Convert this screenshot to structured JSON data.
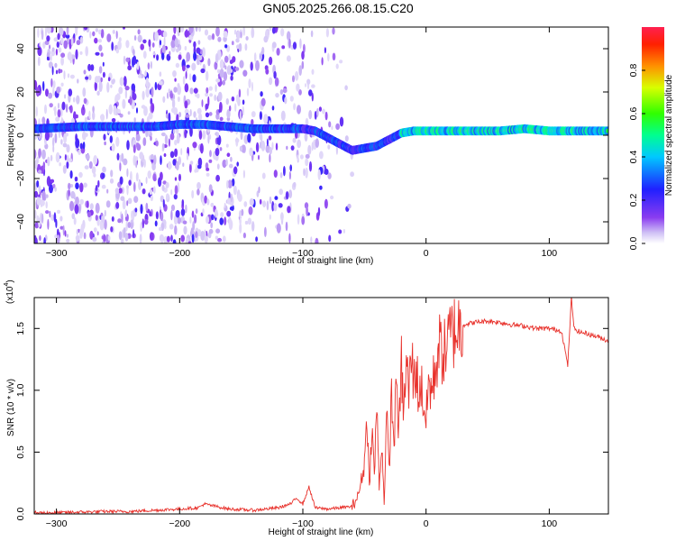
{
  "title": "GN05.2025.266.08.15.C20",
  "colors": {
    "snr_line": "#e8312b",
    "frame": "#000000",
    "background": "#ffffff"
  },
  "chart_data": [
    {
      "type": "heatmap",
      "xlabel": "Height of straight line (km)",
      "ylabel": "Frequency (Hz)",
      "xlim": [
        -318,
        148
      ],
      "ylim": [
        -50,
        50
      ],
      "x_ticks": [
        -300,
        -200,
        -100,
        0,
        100
      ],
      "y_ticks": [
        -40,
        -20,
        0,
        20,
        40
      ],
      "grid": false,
      "colorbar": {
        "label": "Normalized spectral amplitude",
        "range": [
          0,
          1
        ],
        "ticks": [
          0.0,
          0.2,
          0.4,
          0.6,
          0.8
        ],
        "colormap": "rainbow (violet to red)"
      },
      "ridge": {
        "x": [
          -318,
          -280,
          -250,
          -220,
          -200,
          -180,
          -160,
          -140,
          -120,
          -100,
          -90,
          -80,
          -70,
          -60,
          -50,
          -40,
          -30,
          -20,
          -10,
          0,
          20,
          40,
          60,
          80,
          100,
          120,
          148
        ],
        "freq": [
          3,
          4,
          4,
          4,
          5,
          5,
          4,
          3,
          3,
          3,
          2,
          -1,
          -4,
          -7,
          -6,
          -5,
          -2,
          1,
          2,
          2,
          2,
          2,
          2,
          3,
          2,
          2,
          2
        ]
      }
    },
    {
      "type": "line",
      "xlabel": "Height of straight line (km)",
      "ylabel": "SNR (10 * v/v)",
      "y_multiplier": "(x10^4)",
      "y_multiplier_base": "(x10",
      "y_multiplier_exp": "4",
      "xlim": [
        -318,
        148
      ],
      "ylim": [
        0,
        1.75
      ],
      "x_ticks": [
        -300,
        -200,
        -100,
        0,
        100
      ],
      "y_ticks": [
        0.0,
        0.5,
        1.0,
        1.5
      ],
      "grid": false,
      "series": [
        {
          "x": [
            -318,
            -300,
            -280,
            -260,
            -240,
            -220,
            -200,
            -185,
            -180,
            -160,
            -140,
            -120,
            -110,
            -105,
            -100,
            -95,
            -90,
            -80,
            -70,
            -60,
            -55,
            -50,
            -48,
            -46,
            -44,
            -42,
            -40,
            -38,
            -36,
            -34,
            -32,
            -30,
            -28,
            -26,
            -24,
            -22,
            -20,
            -18,
            -16,
            -14,
            -12,
            -10,
            -8,
            -6,
            -4,
            -2,
            0,
            2,
            5,
            10,
            15,
            20,
            25,
            30,
            40,
            50,
            60,
            70,
            80,
            90,
            100,
            110,
            115,
            118,
            120,
            125,
            130,
            140,
            148
          ],
          "y": [
            0.01,
            0.01,
            0.015,
            0.02,
            0.02,
            0.03,
            0.04,
            0.05,
            0.08,
            0.04,
            0.03,
            0.05,
            0.08,
            0.13,
            0.08,
            0.22,
            0.05,
            0.04,
            0.05,
            0.06,
            0.15,
            0.4,
            0.85,
            0.2,
            0.75,
            0.3,
            0.9,
            0.2,
            0.6,
            0.1,
            0.8,
            0.35,
            0.95,
            0.55,
            1.1,
            0.65,
            1.2,
            0.8,
            1.25,
            0.95,
            1.3,
            1.05,
            1.2,
            0.95,
            1.05,
            0.9,
            0.75,
            1.05,
            1.0,
            1.35,
            1.3,
            1.45,
            1.5,
            1.53,
            1.55,
            1.56,
            1.55,
            1.53,
            1.52,
            1.5,
            1.5,
            1.48,
            1.2,
            1.75,
            1.5,
            1.47,
            1.46,
            1.43,
            1.4
          ]
        }
      ]
    }
  ]
}
